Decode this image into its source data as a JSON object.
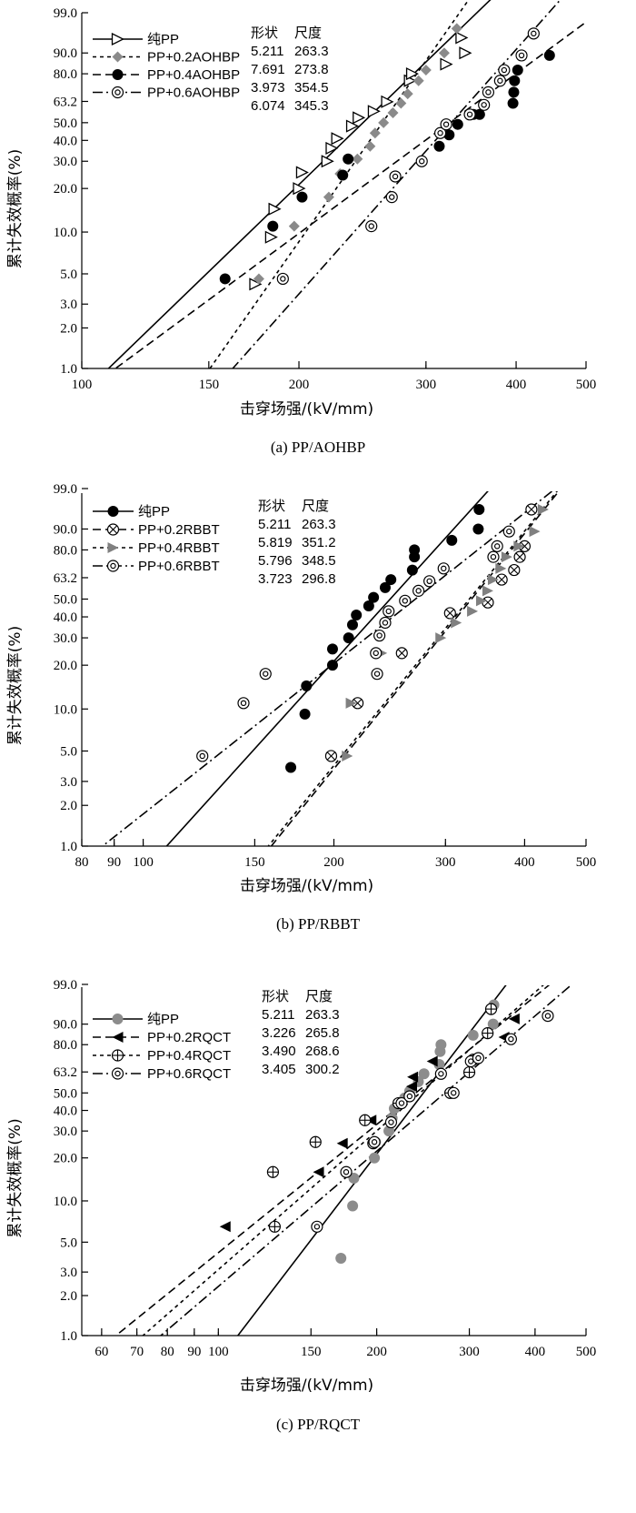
{
  "figure": "Weibull plots of breakdown field strength",
  "chart_data": [
    {
      "type": "scatter",
      "panel": "a",
      "caption": "(a) PP/AOHBP",
      "xlabel": "击穿场强/(kV/mm)",
      "ylabel": "累计失效概率(%)",
      "xscale": "log",
      "yscale": "weibull",
      "xlim": [
        100,
        500
      ],
      "ylim": [
        1.0,
        99.0
      ],
      "xticks": [
        100,
        150,
        200,
        300,
        400,
        500
      ],
      "yticks": [
        "1.0",
        "2.0",
        "3.0",
        "5.0",
        "10.0",
        "20.0",
        "30.0",
        "40.0",
        "50.0",
        "63.2",
        "80.0",
        "90.0",
        "99.0"
      ],
      "param_header": [
        "形状",
        "尺度"
      ],
      "series": [
        {
          "name": "纯PP",
          "marker": "triangle-right-open",
          "line": "solid",
          "shape": "5.211",
          "scale": "263.3",
          "points": [
            [
              174,
              4.2
            ],
            [
              183,
              9.2
            ],
            [
              185,
              14.5
            ],
            [
              200,
              20
            ],
            [
              202,
              25.5
            ],
            [
              219,
              30
            ],
            [
              222,
              36
            ],
            [
              226,
              41
            ],
            [
              237,
              48
            ],
            [
              242,
              53
            ],
            [
              254,
              57
            ],
            [
              265,
              63
            ],
            [
              285,
              76
            ],
            [
              287,
              80
            ],
            [
              320,
              85
            ],
            [
              336,
              95
            ],
            [
              340,
              90
            ]
          ]
        },
        {
          "name": "PP+0.2AOHBP",
          "marker": "diamond-gray",
          "line": "dotted",
          "shape": "7.691",
          "scale": "273.8",
          "points": [
            [
              176,
              4.6
            ],
            [
              197,
              11
            ],
            [
              220,
              17.5
            ],
            [
              228,
              25
            ],
            [
              241,
              31
            ],
            [
              251,
              37
            ],
            [
              255,
              44
            ],
            [
              262,
              50
            ],
            [
              270,
              56
            ],
            [
              277,
              62
            ],
            [
              283,
              68
            ],
            [
              293,
              76
            ],
            [
              300,
              82
            ],
            [
              318,
              90
            ],
            [
              331,
              97
            ]
          ]
        },
        {
          "name": "PP+0.4AOHBP",
          "marker": "circle-filled",
          "line": "dashed",
          "shape": "3.973",
          "scale": "354.5",
          "points": [
            [
              158,
              4.6
            ],
            [
              184,
              11
            ],
            [
              202,
              17.5
            ],
            [
              230,
              24.5
            ],
            [
              234,
              31
            ],
            [
              313,
              37
            ],
            [
              323,
              43
            ],
            [
              332,
              49
            ],
            [
              349,
              55
            ],
            [
              356,
              55
            ],
            [
              396,
              62
            ],
            [
              397,
              69
            ],
            [
              398,
              76
            ],
            [
              402,
              82
            ],
            [
              445,
              89
            ]
          ]
        },
        {
          "name": "PP+0.6AOHBP",
          "marker": "circle-dot",
          "line": "dashdot",
          "shape": "6.074",
          "scale": "345.3",
          "points": [
            [
              190,
              4.6
            ],
            [
              252,
              11
            ],
            [
              269,
              17.5
            ],
            [
              272,
              24
            ],
            [
              296,
              30
            ],
            [
              314,
              44
            ],
            [
              320,
              49
            ],
            [
              345,
              55
            ],
            [
              361,
              61
            ],
            [
              366,
              69
            ],
            [
              380,
              76
            ],
            [
              385,
              82
            ],
            [
              407,
              89
            ],
            [
              423,
              96
            ]
          ]
        }
      ]
    },
    {
      "type": "scatter",
      "panel": "b",
      "caption": "(b) PP/RBBT",
      "xlabel": "击穿场强/(kV/mm)",
      "ylabel": "累计失效概率(%)",
      "xscale": "log",
      "yscale": "weibull",
      "xlim": [
        80,
        500
      ],
      "ylim": [
        1.0,
        99.0
      ],
      "xticks": [
        80,
        90,
        100,
        150,
        200,
        300,
        400,
        500
      ],
      "yticks": [
        "1.0",
        "2.0",
        "3.0",
        "5.0",
        "10.0",
        "20.0",
        "30.0",
        "40.0",
        "50.0",
        "63.2",
        "80.0",
        "90.0",
        "99.0"
      ],
      "param_header": [
        "形状",
        "尺度"
      ],
      "series": [
        {
          "name": "纯PP",
          "marker": "circle-filled",
          "line": "solid",
          "shape": "5.211",
          "scale": "263.3",
          "points": [
            [
              171,
              3.8
            ],
            [
              180,
              9.2
            ],
            [
              181,
              14.5
            ],
            [
              199,
              20
            ],
            [
              199,
              25.5
            ],
            [
              211,
              30
            ],
            [
              214,
              36
            ],
            [
              217,
              41
            ],
            [
              227,
              46
            ],
            [
              231,
              51
            ],
            [
              241,
              57
            ],
            [
              246,
              62
            ],
            [
              266,
              68
            ],
            [
              268,
              76
            ],
            [
              268,
              80
            ],
            [
              307,
              85
            ],
            [
              338,
              90
            ],
            [
              339,
              96
            ]
          ]
        },
        {
          "name": "PP+0.2RBBT",
          "marker": "circle-x",
          "line": "dashed",
          "shape": "5.819",
          "scale": "351.2",
          "points": [
            [
              198,
              4.6
            ],
            [
              218,
              11
            ],
            [
              256,
              24
            ],
            [
              305,
              42
            ],
            [
              350,
              48
            ],
            [
              368,
              62
            ],
            [
              385,
              68
            ],
            [
              393,
              76
            ],
            [
              400,
              82
            ],
            [
              410,
              96
            ]
          ]
        },
        {
          "name": "PP+0.4RBBT",
          "marker": "triangle-right-gray",
          "line": "dotted",
          "shape": "5.796",
          "scale": "348.5",
          "points": [
            [
              210,
              4.6
            ],
            [
              213,
              11
            ],
            [
              238,
              24
            ],
            [
              295,
              30
            ],
            [
              312,
              37
            ],
            [
              331,
              43
            ],
            [
              342,
              49
            ],
            [
              350,
              55
            ],
            [
              357,
              62
            ],
            [
              367,
              69
            ],
            [
              375,
              76
            ],
            [
              392,
              82
            ],
            [
              415,
              89
            ],
            [
              428,
              96
            ]
          ]
        },
        {
          "name": "PP+0.6RBBT",
          "marker": "circle-dot",
          "line": "dashdot",
          "shape": "3.723",
          "scale": "296.8",
          "points": [
            [
              124,
              4.6
            ],
            [
              144,
              11
            ],
            [
              156,
              17.5
            ],
            [
              234,
              17.5
            ],
            [
              233,
              24
            ],
            [
              236,
              31
            ],
            [
              241,
              37
            ],
            [
              244,
              43
            ],
            [
              259,
              49
            ],
            [
              272,
              55
            ],
            [
              283,
              61
            ],
            [
              298,
              69
            ],
            [
              357,
              76
            ],
            [
              362,
              82
            ],
            [
              378,
              89
            ]
          ]
        }
      ]
    },
    {
      "type": "scatter",
      "panel": "c",
      "caption": "(c) PP/RQCT",
      "xlabel": "击穿场强/(kV/mm)",
      "ylabel": "累计失效概率(%)",
      "xscale": "log",
      "yscale": "weibull",
      "xlim": [
        55,
        500
      ],
      "ylim": [
        1.0,
        99.0
      ],
      "xticks": [
        60,
        70,
        80,
        90,
        100,
        150,
        200,
        300,
        400,
        500
      ],
      "yticks": [
        "1.0",
        "2.0",
        "3.0",
        "5.0",
        "10.0",
        "20.0",
        "30.0",
        "40.0",
        "50.0",
        "63.2",
        "80.0",
        "90.0",
        "99.0"
      ],
      "param_header": [
        "形状",
        "尺度"
      ],
      "series": [
        {
          "name": "纯PP",
          "marker": "circle-gray",
          "line": "solid",
          "shape": "5.211",
          "scale": "263.3",
          "points": [
            [
              171,
              3.8
            ],
            [
              180,
              9.2
            ],
            [
              181,
              14.5
            ],
            [
              198,
              20
            ],
            [
              199,
              25.5
            ],
            [
              211,
              30
            ],
            [
              214,
              36
            ],
            [
              216,
              41
            ],
            [
              226,
              47
            ],
            [
              231,
              51
            ],
            [
              240,
              57
            ],
            [
              246,
              62
            ],
            [
              263,
              68
            ],
            [
              264,
              76
            ],
            [
              265,
              80
            ],
            [
              305,
              85
            ],
            [
              333,
              90
            ],
            [
              334,
              96
            ]
          ]
        },
        {
          "name": "PP+0.2RQCT",
          "marker": "triangle-left-filled",
          "line": "dashed",
          "shape": "3.226",
          "scale": "265.8",
          "points": [
            [
              103,
              6.5
            ],
            [
              155,
              16
            ],
            [
              172,
              25
            ],
            [
              195,
              35
            ],
            [
              233,
              54
            ],
            [
              234,
              60
            ],
            [
              255,
              70
            ],
            [
              309,
              72
            ],
            [
              349,
              84
            ],
            [
              365,
              92
            ]
          ]
        },
        {
          "name": "PP+0.4RQCT",
          "marker": "circle-plus",
          "line": "dotted",
          "shape": "3.490",
          "scale": "268.6",
          "points": [
            [
              128,
              6.5
            ],
            [
              127,
              16
            ],
            [
              153,
              25.5
            ],
            [
              190,
              35
            ],
            [
              197,
              25
            ],
            [
              220,
              44
            ],
            [
              276,
              50
            ],
            [
              300,
              63
            ],
            [
              305,
              71
            ],
            [
              325,
              86
            ],
            [
              330,
              95
            ]
          ]
        },
        {
          "name": "PP+0.6RQCT",
          "marker": "circle-dot",
          "line": "dashdot",
          "shape": "3.405",
          "scale": "300.2",
          "points": [
            [
              154,
              6.5
            ],
            [
              175,
              16
            ],
            [
              198,
              25.5
            ],
            [
              213,
              34
            ],
            [
              223,
              44
            ],
            [
              231,
              48
            ],
            [
              280,
              50
            ],
            [
              265,
              62
            ],
            [
              302,
              70
            ],
            [
              312,
              72
            ],
            [
              360,
              83
            ],
            [
              423,
              93
            ]
          ]
        }
      ]
    }
  ]
}
